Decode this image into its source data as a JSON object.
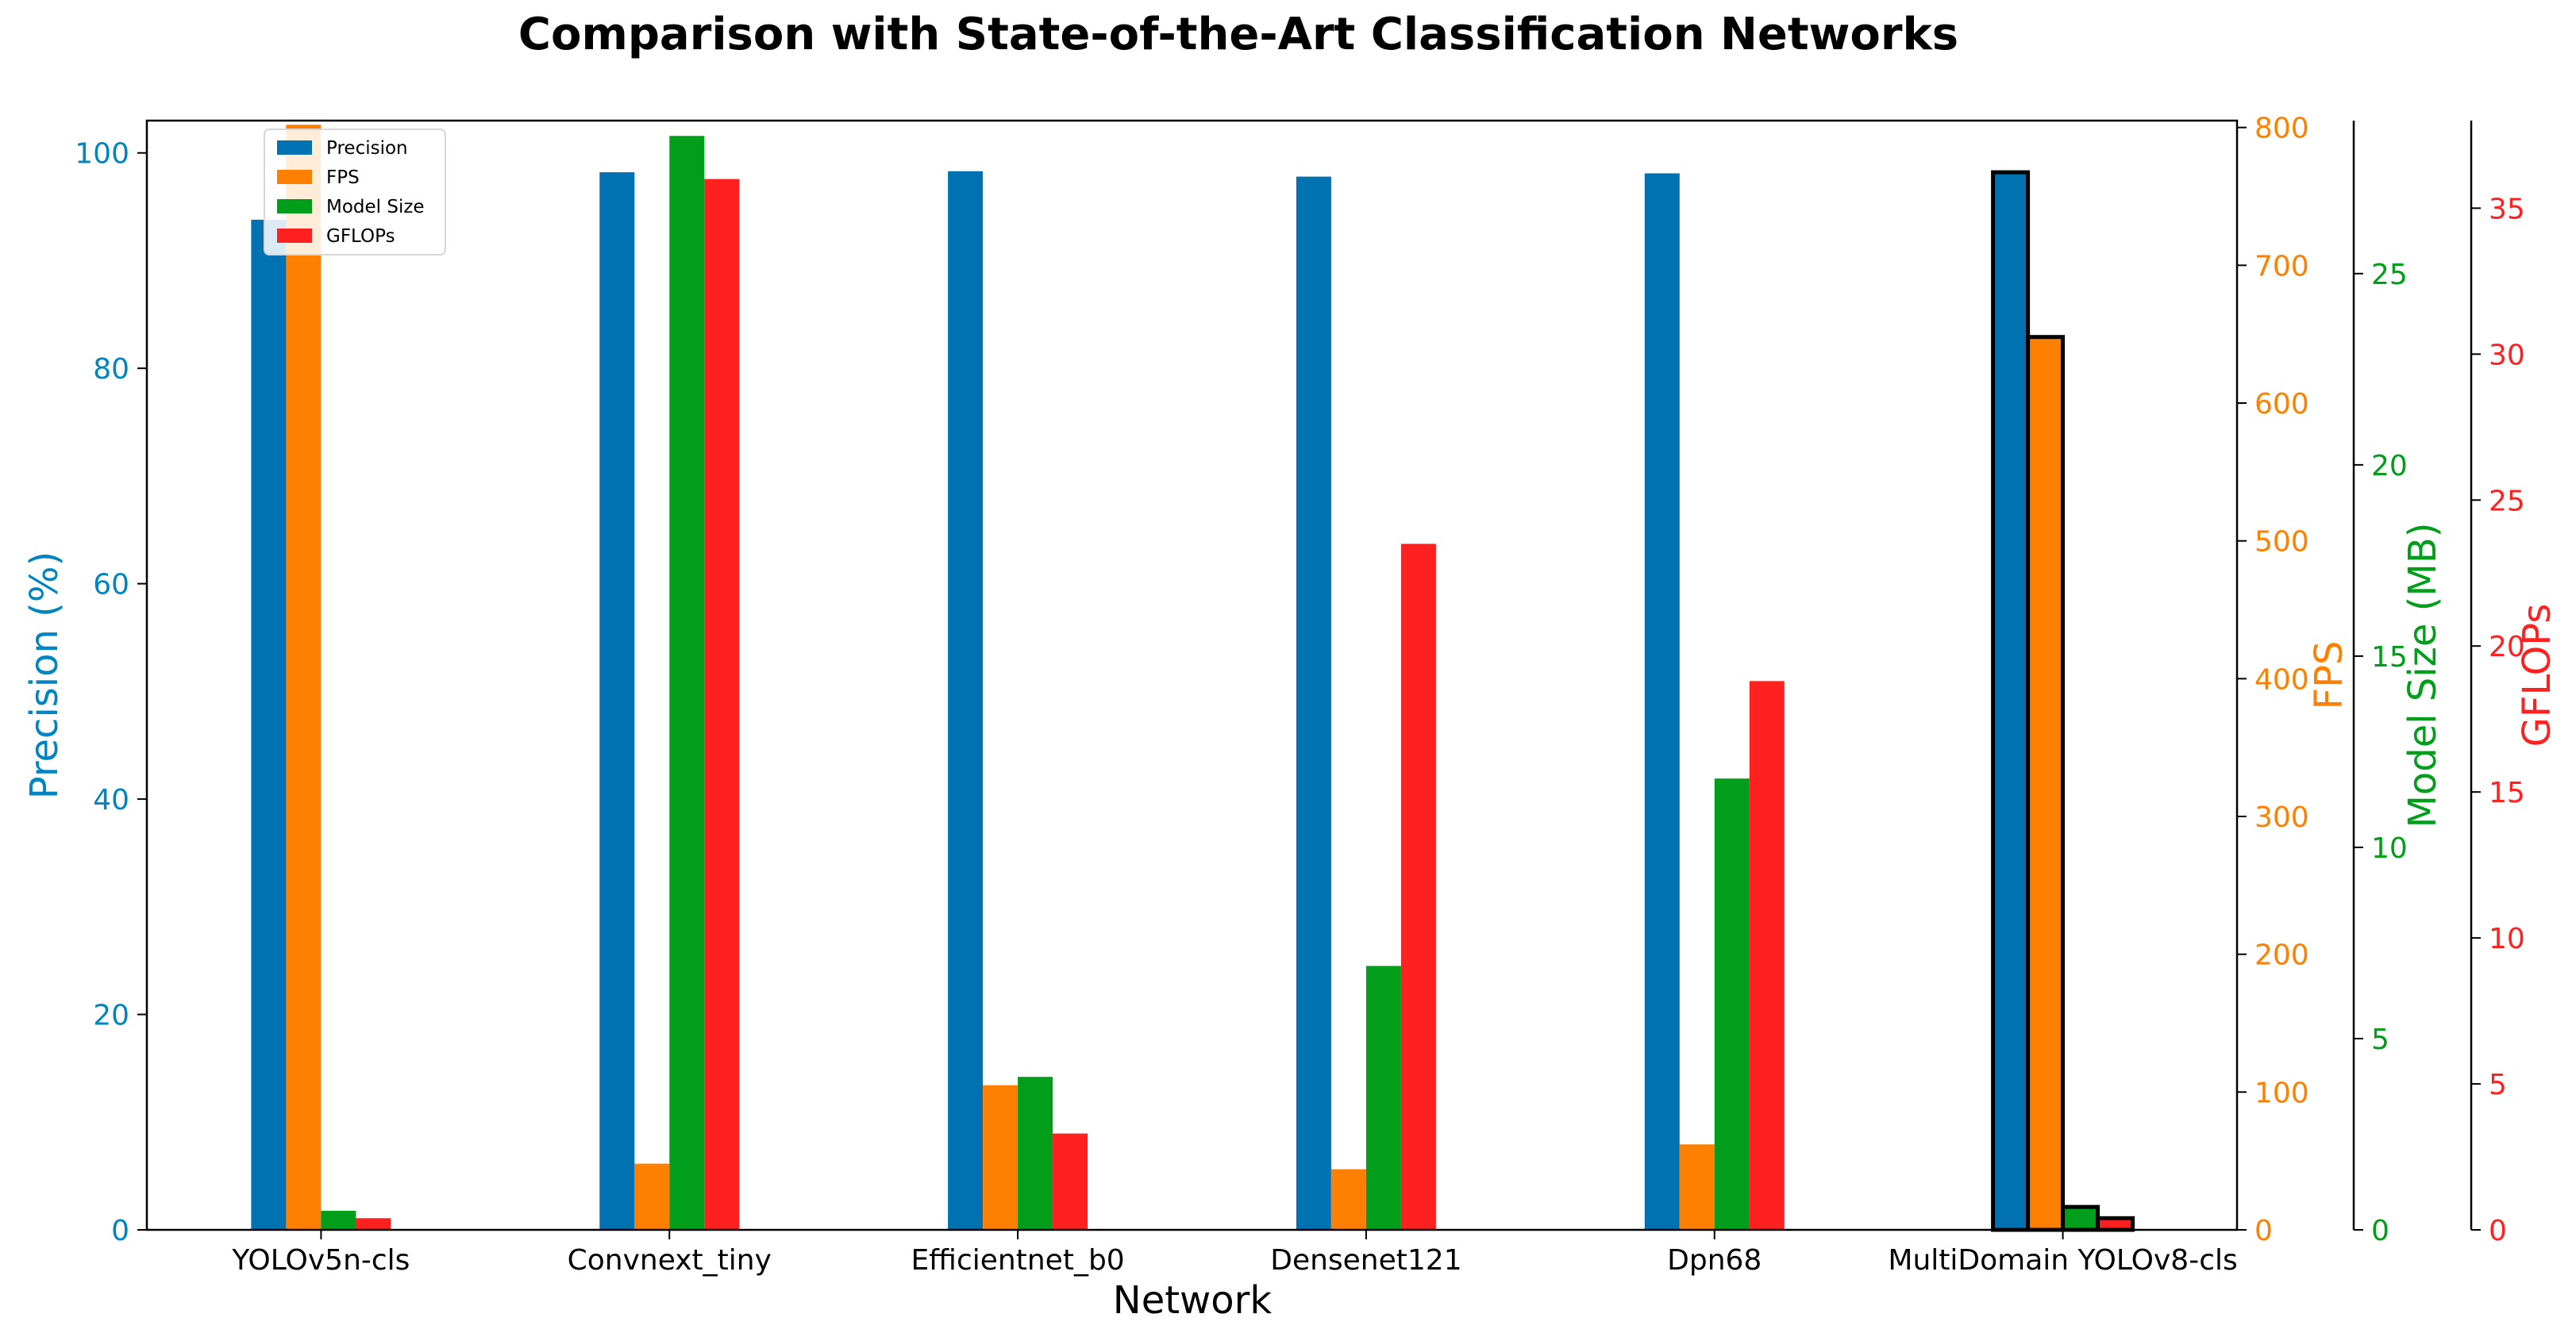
{
  "chart_data": {
    "type": "bar",
    "title": "Comparison with State-of-the-Art Classification Networks",
    "xlabel": "Network",
    "categories": [
      "YOLOv5n-cls",
      "Convnext_tiny",
      "Efficientnet_b0",
      "Densenet121",
      "Dpn68",
      "MultiDomain YOLOv8-cls"
    ],
    "highlight_category": "MultiDomain YOLOv8-cls",
    "legend_position": "top-left",
    "grid": false,
    "series": [
      {
        "name": "Precision",
        "color": "#0072b2",
        "axis": "precision",
        "values": [
          93.8,
          98.2,
          98.3,
          97.8,
          98.1,
          98.2
        ]
      },
      {
        "name": "FPS",
        "color": "#ff8000",
        "axis": "fps",
        "values": [
          802,
          48,
          105,
          44,
          62,
          648
        ]
      },
      {
        "name": "Model Size",
        "color": "#009e1a",
        "axis": "size",
        "values": [
          0.5,
          28.6,
          4.0,
          6.9,
          11.8,
          0.6
        ]
      },
      {
        "name": "GFLOPs",
        "color": "#ff2020",
        "axis": "gflops",
        "values": [
          0.4,
          36.0,
          3.3,
          23.5,
          18.8,
          0.4
        ]
      }
    ],
    "axes": {
      "precision": {
        "label": "Precision (%)",
        "color": "#0085c0",
        "range": [
          0,
          103
        ],
        "ticks": [
          0,
          20,
          40,
          60,
          80,
          100
        ]
      },
      "fps": {
        "label": "FPS",
        "color": "#ff8000",
        "range": [
          0,
          805
        ],
        "ticks": [
          0,
          100,
          200,
          300,
          400,
          500,
          600,
          700,
          800
        ]
      },
      "size": {
        "label": "Model Size (MB)",
        "color": "#009e1a",
        "range": [
          0,
          29
        ],
        "ticks": [
          0,
          5,
          10,
          15,
          20,
          25
        ]
      },
      "gflops": {
        "label": "GFLOPs",
        "color": "#ff2020",
        "range": [
          0,
          38
        ],
        "ticks": [
          0,
          5,
          10,
          15,
          20,
          25,
          30,
          35
        ]
      }
    }
  }
}
